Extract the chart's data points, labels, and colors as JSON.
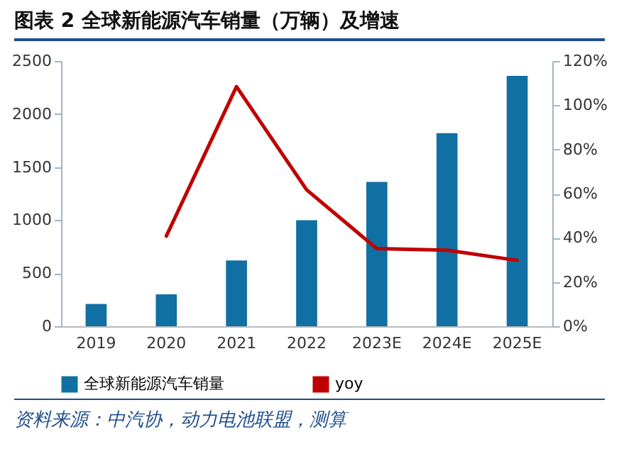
{
  "chart_data": {
    "type": "bar",
    "title": "图表 2   全球新能源汽车销量（万辆）及增速",
    "categories": [
      "2019",
      "2020",
      "2021",
      "2022",
      "2023E",
      "2024E",
      "2025E"
    ],
    "series": [
      {
        "name": "全球新能源汽车销量",
        "color": "#1170a3",
        "values": [
          210,
          300,
          620,
          1000,
          1360,
          1820,
          2360
        ]
      },
      {
        "name": "yoy",
        "type": "line",
        "axis": "y2",
        "color": "#c00000",
        "values": [
          null,
          40.8,
          108.4,
          61.7,
          35.1,
          34.4,
          29.8
        ]
      }
    ],
    "ylim": [
      0,
      2500
    ],
    "yticks": [
      0,
      500,
      1000,
      1500,
      2000,
      2500
    ],
    "y2lim": [
      0,
      120
    ],
    "y2ticks": [
      {
        "value": 0,
        "label": "0%"
      },
      {
        "value": 20,
        "label": "20%"
      },
      {
        "value": 40,
        "label": "40%"
      },
      {
        "value": 60,
        "label": "60%"
      },
      {
        "value": 80,
        "label": "80%"
      },
      {
        "value": 100,
        "label": "100%"
      },
      {
        "value": 120,
        "label": "120%"
      }
    ],
    "grid": false,
    "legend": "bottom",
    "marker": "none",
    "line_style": "solid",
    "annotations": [
      "资料来源：中汽协，动力电池联盟，测算"
    ]
  }
}
